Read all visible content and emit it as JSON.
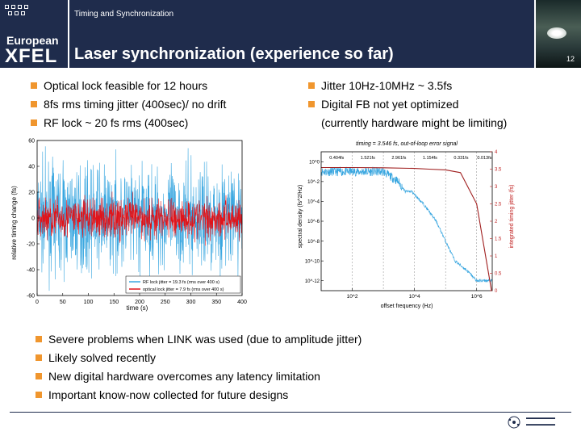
{
  "brand": {
    "line1": "European",
    "line2": "XFEL"
  },
  "header": {
    "subtitle": "Timing and Synchronization",
    "title": "Laser synchronization (experience so far)",
    "page_number": "12"
  },
  "left_bullets": [
    "Optical lock feasible for 12 hours",
    "8fs rms timing jitter (400sec)/ no drift",
    "RF lock ~ 20 fs rms (400sec)"
  ],
  "right_bullets": [
    "Jitter 10Hz-10MHz ~ 3.5fs",
    "Digital FB not yet optimized",
    "(currently hardware might be limiting)"
  ],
  "bottom_bullets": [
    "Severe problems when LINK was used (due to amplitude jitter)",
    "Likely solved recently",
    "New digital hardware overcomes any latency limitation",
    "Important know-now collected for future designs"
  ],
  "chart_data": [
    {
      "type": "line",
      "xlabel": "time (s)",
      "ylabel": "relative timing change (fs)",
      "xlim": [
        0,
        400
      ],
      "ylim": [
        -60,
        60
      ],
      "xticks": [
        "0",
        "50",
        "100",
        "150",
        "200",
        "250",
        "300",
        "350",
        "400"
      ],
      "yticks": [
        "60",
        "40",
        "20",
        "0",
        "-20",
        "-40",
        "-60"
      ],
      "legend_position": "bottom-right",
      "series": [
        {
          "name": "RF lock jitter = 19.3 fs (rms over 400 s)",
          "color": "#3aa7e0",
          "rms": 19.3
        },
        {
          "name": "optical lock jitter = 7.9 fs (rms over 400 s)",
          "color": "#e0141a",
          "rms": 7.9
        }
      ]
    },
    {
      "type": "line",
      "title": "timing = 3.546 fs, out-of-loop error signal",
      "xlabel": "offset frequency (Hz)",
      "ylabel_left": "spectral density (fs^2/Hz)",
      "ylabel_right": "integrated timing jitter (fs)",
      "x_scale": "log",
      "xticks": [
        "10^2",
        "10^4",
        "10^6"
      ],
      "yticks_left": [
        "10^0",
        "10^-2",
        "10^-4",
        "10^-6",
        "10^-8",
        "10^-10",
        "10^-12"
      ],
      "yticks_right": [
        "4",
        "3.5",
        "3",
        "2.5",
        "2",
        "1.5",
        "1",
        "0.5",
        "0"
      ],
      "band_labels": [
        "0.404fs",
        "1.521fs",
        "2.961fs",
        "1.154fs",
        "0.331fs",
        "0.013fs"
      ],
      "series": [
        {
          "name": "spectral density",
          "color": "#3aa7e0",
          "x": [
            10,
            100,
            1000,
            3000,
            5000,
            8000,
            10000,
            20000,
            50000,
            100000,
            200000,
            500000,
            1000000,
            3000000
          ],
          "y": [
            0.1,
            0.1,
            0.1,
            0.01,
            0.001,
            0.001,
            0.0005,
            5e-05,
            1e-06,
            1e-08,
            1e-10,
            1e-11,
            1e-12,
            1e-12
          ]
        },
        {
          "name": "integrated timing jitter",
          "color": "#a01f1f",
          "x": [
            10,
            100,
            1000,
            10000,
            30000,
            100000,
            300000,
            1000000,
            3000000
          ],
          "y": [
            3.546,
            3.546,
            3.54,
            3.52,
            3.5,
            3.48,
            3.4,
            2.5,
            0
          ]
        }
      ]
    }
  ]
}
